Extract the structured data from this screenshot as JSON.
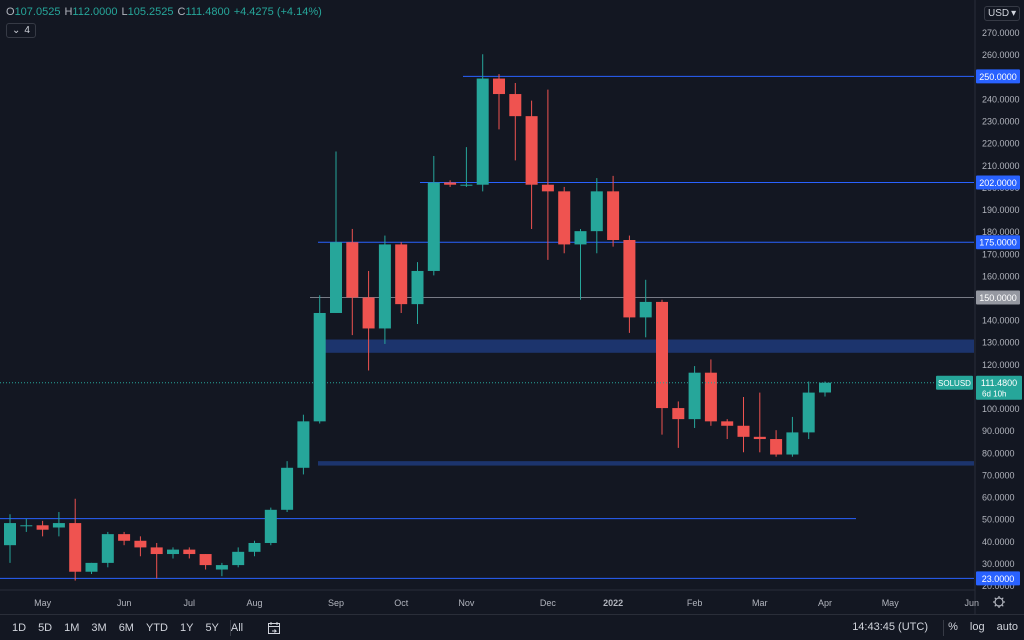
{
  "ohlc": {
    "open_label": "O",
    "open": "107.0525",
    "high_label": "H",
    "high": "112.0000",
    "low_label": "L",
    "low": "105.2525",
    "close_label": "C",
    "close": "111.4800",
    "change": "+4.4275 (+4.14%)"
  },
  "indicators_toggle": {
    "count": "4"
  },
  "currency": {
    "label": "USD",
    "prefix": "2"
  },
  "symbol_tag": {
    "symbol": "SOLUSD",
    "price": "111.4800",
    "countdown": "6d 10h"
  },
  "range_buttons": [
    "1D",
    "5D",
    "1M",
    "3M",
    "6M",
    "YTD",
    "1Y",
    "5Y",
    "All"
  ],
  "clock": "14:43:45 (UTC)",
  "scale_buttons": {
    "percent": "%",
    "log": "log",
    "auto": "auto"
  },
  "colors": {
    "up": "#26a69a",
    "down": "#ef5350",
    "background": "#131722",
    "level_line": "#2962ff",
    "zone_fill": "#1f3a7a",
    "gray_level": "#9598a1"
  },
  "chart_data": {
    "type": "candlestick",
    "symbol": "SOLUSD",
    "timeframe": "1W",
    "ylim": [
      20,
      280
    ],
    "y_ticks": [
      "20.0000",
      "30.0000",
      "40.0000",
      "50.0000",
      "60.0000",
      "70.0000",
      "80.0000",
      "90.0000",
      "100.0000",
      "110.0000",
      "120.0000",
      "130.0000",
      "140.0000",
      "150.0000",
      "160.0000",
      "170.0000",
      "180.0000",
      "190.0000",
      "200.0000",
      "210.0000",
      "220.0000",
      "230.0000",
      "240.0000",
      "250.0000",
      "260.0000",
      "270.0000"
    ],
    "x_ticks": [
      {
        "label": "May",
        "week": 2
      },
      {
        "label": "Jun",
        "week": 7
      },
      {
        "label": "Jul",
        "week": 11
      },
      {
        "label": "Aug",
        "week": 15
      },
      {
        "label": "Sep",
        "week": 20
      },
      {
        "label": "Oct",
        "week": 24
      },
      {
        "label": "Nov",
        "week": 28
      },
      {
        "label": "Dec",
        "week": 33
      },
      {
        "label": "2022",
        "week": 37
      },
      {
        "label": "Feb",
        "week": 42
      },
      {
        "label": "Mar",
        "week": 46
      },
      {
        "label": "Apr",
        "week": 50
      },
      {
        "label": "May",
        "week": 54
      },
      {
        "label": "Jun",
        "week": 59
      }
    ],
    "candles": [
      {
        "o": 38,
        "h": 52,
        "l": 30,
        "c": 48
      },
      {
        "o": 47,
        "h": 50,
        "l": 44,
        "c": 47
      },
      {
        "o": 47,
        "h": 49,
        "l": 42,
        "c": 45
      },
      {
        "o": 46,
        "h": 53,
        "l": 42,
        "c": 48
      },
      {
        "o": 48,
        "h": 59,
        "l": 22,
        "c": 26
      },
      {
        "o": 26,
        "h": 30,
        "l": 25,
        "c": 30
      },
      {
        "o": 30,
        "h": 44,
        "l": 28,
        "c": 43
      },
      {
        "o": 43,
        "h": 44,
        "l": 38,
        "c": 40
      },
      {
        "o": 40,
        "h": 42,
        "l": 33,
        "c": 37
      },
      {
        "o": 37,
        "h": 39,
        "l": 23,
        "c": 34
      },
      {
        "o": 34,
        "h": 37,
        "l": 32,
        "c": 36
      },
      {
        "o": 36,
        "h": 37,
        "l": 32,
        "c": 34
      },
      {
        "o": 34,
        "h": 34,
        "l": 27,
        "c": 29
      },
      {
        "o": 27,
        "h": 30,
        "l": 24,
        "c": 29
      },
      {
        "o": 29,
        "h": 37,
        "l": 28,
        "c": 35
      },
      {
        "o": 35,
        "h": 40,
        "l": 33,
        "c": 39
      },
      {
        "o": 39,
        "h": 55,
        "l": 38,
        "c": 54
      },
      {
        "o": 54,
        "h": 76,
        "l": 53,
        "c": 73
      },
      {
        "o": 73,
        "h": 97,
        "l": 70,
        "c": 94
      },
      {
        "o": 94,
        "h": 151,
        "l": 93,
        "c": 143
      },
      {
        "o": 143,
        "h": 216,
        "l": 143,
        "c": 175
      },
      {
        "o": 175,
        "h": 181,
        "l": 133,
        "c": 150
      },
      {
        "o": 150,
        "h": 162,
        "l": 117,
        "c": 136
      },
      {
        "o": 136,
        "h": 178,
        "l": 129,
        "c": 174
      },
      {
        "o": 174,
        "h": 175,
        "l": 143,
        "c": 147
      },
      {
        "o": 147,
        "h": 166,
        "l": 138,
        "c": 162
      },
      {
        "o": 162,
        "h": 214,
        "l": 160,
        "c": 202
      },
      {
        "o": 202,
        "h": 203,
        "l": 200,
        "c": 201
      },
      {
        "o": 201,
        "h": 218,
        "l": 200,
        "c": 201
      },
      {
        "o": 201,
        "h": 260,
        "l": 198,
        "c": 249
      },
      {
        "o": 249,
        "h": 251,
        "l": 226,
        "c": 242
      },
      {
        "o": 242,
        "h": 247,
        "l": 212,
        "c": 232
      },
      {
        "o": 232,
        "h": 239,
        "l": 181,
        "c": 201
      },
      {
        "o": 201,
        "h": 244,
        "l": 167,
        "c": 198
      },
      {
        "o": 198,
        "h": 200,
        "l": 170,
        "c": 174
      },
      {
        "o": 174,
        "h": 181,
        "l": 149,
        "c": 180
      },
      {
        "o": 180,
        "h": 204,
        "l": 170,
        "c": 198
      },
      {
        "o": 198,
        "h": 205,
        "l": 173,
        "c": 176
      },
      {
        "o": 176,
        "h": 178,
        "l": 134,
        "c": 141
      },
      {
        "o": 141,
        "h": 158,
        "l": 132,
        "c": 148
      },
      {
        "o": 148,
        "h": 149,
        "l": 88,
        "c": 100
      },
      {
        "o": 100,
        "h": 103,
        "l": 82,
        "c": 95
      },
      {
        "o": 95,
        "h": 119,
        "l": 91,
        "c": 116
      },
      {
        "o": 116,
        "h": 122,
        "l": 92,
        "c": 94
      },
      {
        "o": 94,
        "h": 95,
        "l": 86,
        "c": 92
      },
      {
        "o": 92,
        "h": 105,
        "l": 80,
        "c": 87
      },
      {
        "o": 87,
        "h": 107,
        "l": 80,
        "c": 86
      },
      {
        "o": 86,
        "h": 90,
        "l": 78,
        "c": 79
      },
      {
        "o": 79,
        "h": 96,
        "l": 78,
        "c": 89
      },
      {
        "o": 89,
        "h": 112,
        "l": 86,
        "c": 107
      },
      {
        "o": 107.0525,
        "h": 112,
        "l": 105.2525,
        "c": 111.48
      }
    ],
    "levels": [
      {
        "price": 250,
        "label": "250.0000",
        "color": "#2962ff"
      },
      {
        "price": 202,
        "label": "202.0000",
        "color": "#2962ff"
      },
      {
        "price": 175,
        "label": "175.0000",
        "color": "#2962ff"
      },
      {
        "price": 150,
        "label": "150.0000",
        "color": "#787b86"
      },
      {
        "price": 23,
        "label": "23.0000",
        "color": "#2962ff"
      },
      {
        "price": 50,
        "label": "",
        "color": "#2962ff"
      }
    ],
    "zones": [
      {
        "from": 125,
        "to": 131
      },
      {
        "from": 74,
        "to": 76
      }
    ]
  }
}
